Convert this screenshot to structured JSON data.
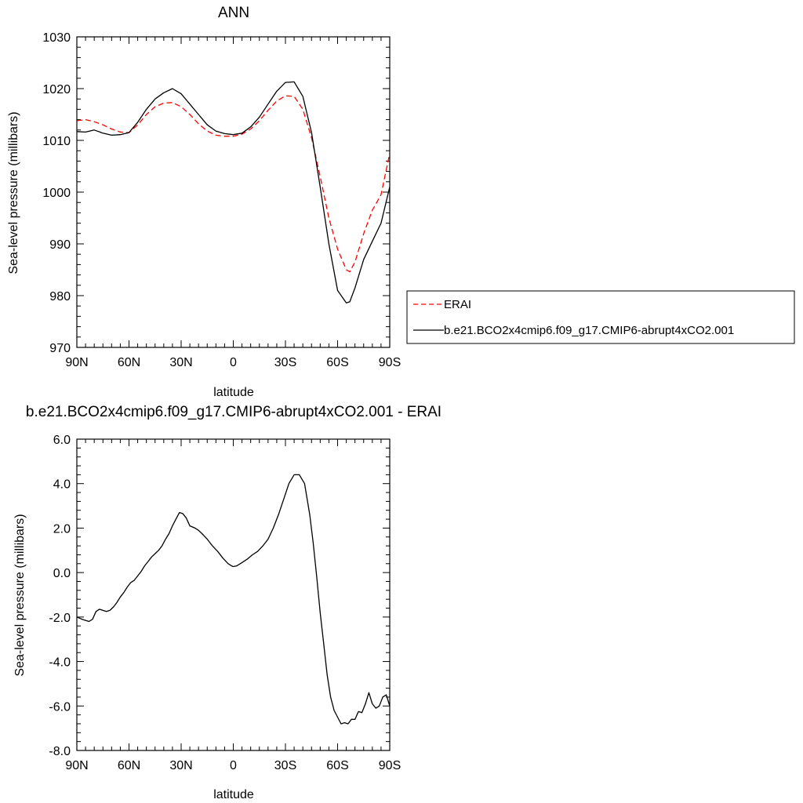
{
  "chart_data": [
    {
      "type": "line",
      "title": "ANN",
      "xlabel": "latitude",
      "ylabel": "Sea-level pressure (millibars)",
      "xlim": [
        90,
        -90
      ],
      "ylim": [
        970,
        1030
      ],
      "xticks": [
        90,
        60,
        30,
        0,
        -30,
        -60,
        -90
      ],
      "xtick_labels": [
        "90N",
        "60N",
        "30N",
        "0",
        "30S",
        "60S",
        "90S"
      ],
      "yticks": [
        970,
        980,
        990,
        1000,
        1010,
        1020,
        1030
      ],
      "ytick_labels": [
        "970",
        "980",
        "990",
        "1000",
        "1010",
        "1020",
        "1030"
      ],
      "legend_position": "right",
      "series": [
        {
          "name": "ERAI",
          "color": "#ff0000",
          "dash": "dashed",
          "x": [
            90,
            85,
            80,
            75,
            70,
            65,
            60,
            55,
            50,
            45,
            40,
            35,
            30,
            25,
            20,
            15,
            10,
            5,
            0,
            -5,
            -10,
            -15,
            -20,
            -25,
            -30,
            -35,
            -40,
            -45,
            -50,
            -55,
            -60,
            -65,
            -67,
            -70,
            -75,
            -80,
            -85,
            -90
          ],
          "y": [
            1013.8,
            1014.0,
            1013.6,
            1013.0,
            1012.2,
            1011.6,
            1011.5,
            1013.0,
            1015.0,
            1016.5,
            1017.2,
            1017.3,
            1016.5,
            1015.0,
            1013.2,
            1011.8,
            1011.0,
            1010.8,
            1010.8,
            1011.2,
            1012.2,
            1013.8,
            1015.8,
            1017.6,
            1018.6,
            1018.5,
            1016.0,
            1010.5,
            1003.0,
            995.0,
            989.0,
            985.0,
            984.6,
            986.5,
            992.0,
            996.5,
            999.5,
            1007.5
          ]
        },
        {
          "name": "b.e21.BCO2x4cmip6.f09_g17.CMIP6-abrupt4xCO2.001",
          "color": "#000000",
          "dash": "solid",
          "x": [
            90,
            85,
            80,
            75,
            70,
            65,
            60,
            55,
            50,
            45,
            40,
            35,
            30,
            25,
            20,
            15,
            10,
            5,
            0,
            -5,
            -10,
            -15,
            -20,
            -25,
            -30,
            -35,
            -40,
            -45,
            -50,
            -55,
            -60,
            -65,
            -67,
            -70,
            -75,
            -80,
            -85,
            -90
          ],
          "y": [
            1011.7,
            1011.6,
            1012.0,
            1011.4,
            1011.0,
            1011.1,
            1011.5,
            1013.5,
            1016.0,
            1018.0,
            1019.2,
            1020.0,
            1019.0,
            1017.0,
            1015.0,
            1013.0,
            1011.8,
            1011.3,
            1011.1,
            1011.4,
            1012.6,
            1014.5,
            1017.0,
            1019.5,
            1021.2,
            1021.3,
            1018.5,
            1011.5,
            1001.0,
            990.0,
            981.0,
            978.6,
            978.8,
            981.5,
            987.0,
            990.5,
            994.0,
            1001.0
          ]
        }
      ]
    },
    {
      "type": "line",
      "title": "b.e21.BCO2x4cmip6.f09_g17.CMIP6-abrupt4xCO2.001 - ERAI",
      "xlabel": "latitude",
      "ylabel": "Sea-level pressure (millibars)",
      "xlim": [
        90,
        -90
      ],
      "ylim": [
        -8.0,
        6.0
      ],
      "xticks": [
        90,
        60,
        30,
        0,
        -30,
        -60,
        -90
      ],
      "xtick_labels": [
        "90N",
        "60N",
        "30N",
        "0",
        "30S",
        "60S",
        "90S"
      ],
      "yticks": [
        -8,
        -6,
        -4,
        -2,
        0,
        2,
        4,
        6
      ],
      "ytick_labels": [
        "-8.0",
        "-6.0",
        "-4.0",
        "-2.0",
        "0.0",
        "2.0",
        "4.0",
        "6.0"
      ],
      "series": [
        {
          "name": "",
          "color": "#000000",
          "dash": "solid",
          "x": [
            90,
            87,
            85,
            83,
            81,
            79,
            77,
            75,
            73,
            71,
            69,
            67,
            65,
            63,
            61,
            59,
            57,
            55,
            53,
            51,
            49,
            47,
            45,
            43,
            41,
            39,
            37,
            35,
            33,
            31,
            29,
            27,
            25,
            22,
            20,
            18,
            15,
            12,
            9,
            6,
            3,
            1,
            0,
            -2,
            -5,
            -8,
            -11,
            -14,
            -17,
            -20,
            -23,
            -26,
            -29,
            -32,
            -35,
            -38,
            -41,
            -44,
            -46,
            -48,
            -50,
            -52,
            -54,
            -56,
            -58,
            -60,
            -62,
            -64,
            -66,
            -68,
            -70,
            -72,
            -74,
            -76,
            -78,
            -80,
            -82,
            -84,
            -86,
            -88,
            -90
          ],
          "y": [
            -2.0,
            -2.1,
            -2.15,
            -2.2,
            -2.1,
            -1.75,
            -1.65,
            -1.7,
            -1.75,
            -1.7,
            -1.55,
            -1.35,
            -1.1,
            -0.9,
            -0.65,
            -0.45,
            -0.35,
            -0.15,
            0.05,
            0.3,
            0.5,
            0.7,
            0.85,
            1.0,
            1.2,
            1.5,
            1.75,
            2.1,
            2.4,
            2.7,
            2.65,
            2.45,
            2.1,
            2.0,
            1.9,
            1.75,
            1.5,
            1.2,
            0.95,
            0.65,
            0.4,
            0.3,
            0.27,
            0.3,
            0.45,
            0.6,
            0.8,
            0.95,
            1.2,
            1.5,
            2.0,
            2.6,
            3.3,
            4.0,
            4.4,
            4.4,
            4.0,
            2.6,
            1.3,
            -0.2,
            -1.8,
            -3.2,
            -4.6,
            -5.6,
            -6.2,
            -6.5,
            -6.8,
            -6.75,
            -6.8,
            -6.6,
            -6.6,
            -6.25,
            -6.3,
            -5.9,
            -5.4,
            -5.9,
            -6.1,
            -6.0,
            -5.6,
            -5.5,
            -6.0
          ]
        }
      ]
    }
  ]
}
